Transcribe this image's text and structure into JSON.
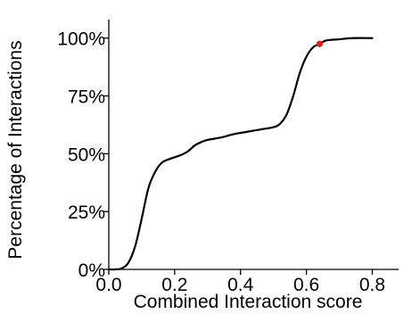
{
  "chart_data": {
    "type": "line",
    "title": "",
    "xlabel": "Combined Interaction score",
    "ylabel": "Percentage of Interactions",
    "xlim": [
      0.0,
      0.88
    ],
    "ylim": [
      0,
      108
    ],
    "x_ticks": [
      {
        "value": 0.0,
        "label": "0.0"
      },
      {
        "value": 0.2,
        "label": "0.2"
      },
      {
        "value": 0.4,
        "label": "0.4"
      },
      {
        "value": 0.6,
        "label": "0.6"
      },
      {
        "value": 0.8,
        "label": "0.8"
      }
    ],
    "y_ticks": [
      {
        "value": 0,
        "label": "0%"
      },
      {
        "value": 25,
        "label": "25%"
      },
      {
        "value": 50,
        "label": "50%"
      },
      {
        "value": 75,
        "label": "75%"
      },
      {
        "value": 100,
        "label": "100%"
      }
    ],
    "grid": false,
    "legend": "none",
    "series": [
      {
        "color": "#000000",
        "x": [
          0.0,
          0.02,
          0.04,
          0.06,
          0.08,
          0.1,
          0.12,
          0.14,
          0.16,
          0.18,
          0.2,
          0.22,
          0.24,
          0.26,
          0.28,
          0.3,
          0.34,
          0.38,
          0.42,
          0.46,
          0.5,
          0.52,
          0.54,
          0.56,
          0.58,
          0.6,
          0.62,
          0.64,
          0.66,
          0.7,
          0.74,
          0.8
        ],
        "y": [
          0,
          0,
          0.5,
          3,
          10,
          22,
          35,
          42,
          46,
          47.5,
          48.5,
          49.5,
          51,
          53.5,
          55,
          56,
          57,
          58.5,
          59.5,
          60.5,
          61.5,
          63,
          67,
          75,
          85,
          92,
          96,
          97.5,
          99,
          99.5,
          100,
          100
        ]
      }
    ],
    "highlight_point": {
      "x": 0.64,
      "y": 97.5,
      "color": "#e0201b"
    }
  }
}
